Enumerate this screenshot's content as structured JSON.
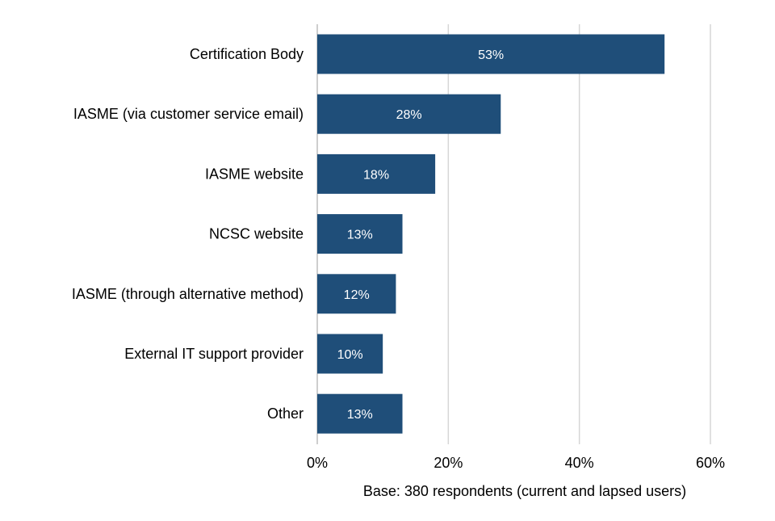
{
  "chart_data": {
    "type": "bar",
    "orientation": "horizontal",
    "categories": [
      "Certification Body",
      "IASME (via customer service email)",
      "IASME website",
      "NCSC website",
      "IASME (through alternative method)",
      "External IT support provider",
      "Other"
    ],
    "values": [
      53,
      28,
      18,
      13,
      12,
      10,
      13
    ],
    "data_labels": [
      "53%",
      "28%",
      "18%",
      "13%",
      "12%",
      "10%",
      "13%"
    ],
    "xlim": [
      0,
      60
    ],
    "xticks": [
      0,
      20,
      40,
      60
    ],
    "xtick_labels": [
      "0%",
      "20%",
      "40%",
      "60%"
    ],
    "grid": true,
    "title": "",
    "xlabel": "",
    "ylabel": "",
    "base_note": "Base: 380 respondents (current and lapsed users)",
    "colors": {
      "bar": "#1f4e79",
      "data_label": "#ffffff",
      "grid": "#d6d6d6"
    }
  }
}
